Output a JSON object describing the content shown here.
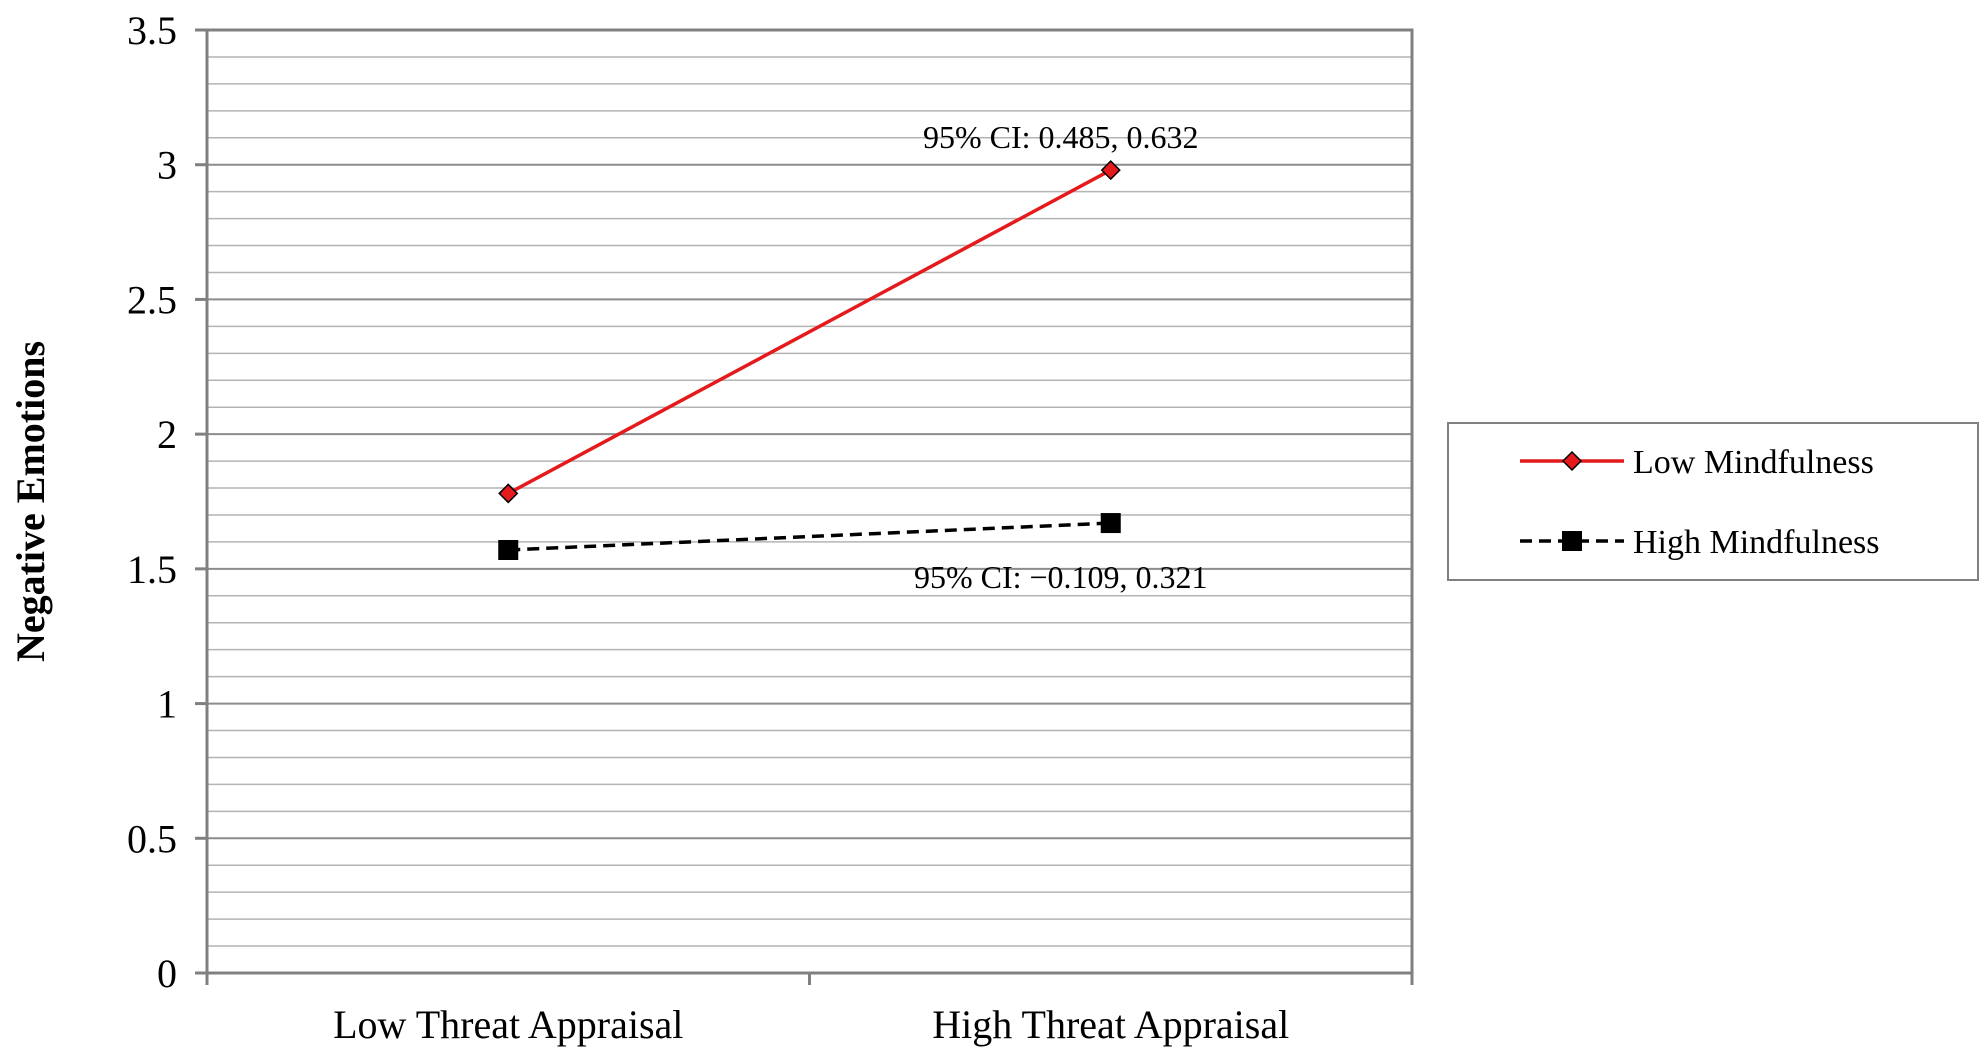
{
  "chart_data": {
    "type": "line",
    "title": "",
    "xlabel": "",
    "ylabel": "Negative  Emotions",
    "categories": [
      "Low Threat  Appraisal",
      "High Threat  Appraisal"
    ],
    "ylim": [
      0,
      3.5
    ],
    "y_ticks": [
      "0",
      "0.5",
      "1",
      "1.5",
      "2",
      "2.5",
      "3",
      "3.5"
    ],
    "y_tick_values": [
      0,
      0.5,
      1,
      1.5,
      2,
      2.5,
      3,
      3.5
    ],
    "grid": true,
    "legend_position": "right",
    "series": [
      {
        "name": "Low Mindfulness",
        "values": [
          1.78,
          2.98
        ],
        "color": "#e41a1c",
        "line_style": "solid",
        "marker": "diamond"
      },
      {
        "name": "High Mindfulness",
        "values": [
          1.57,
          1.67
        ],
        "color": "#000000",
        "line_style": "dashed",
        "marker": "square"
      }
    ],
    "annotations": [
      {
        "text": "95% CI: 0.485, 0.632",
        "series": 0,
        "category": 1,
        "placement": "above"
      },
      {
        "text": "95% CI: −0.109, 0.321",
        "series": 1,
        "category": 1,
        "placement": "below"
      }
    ]
  }
}
